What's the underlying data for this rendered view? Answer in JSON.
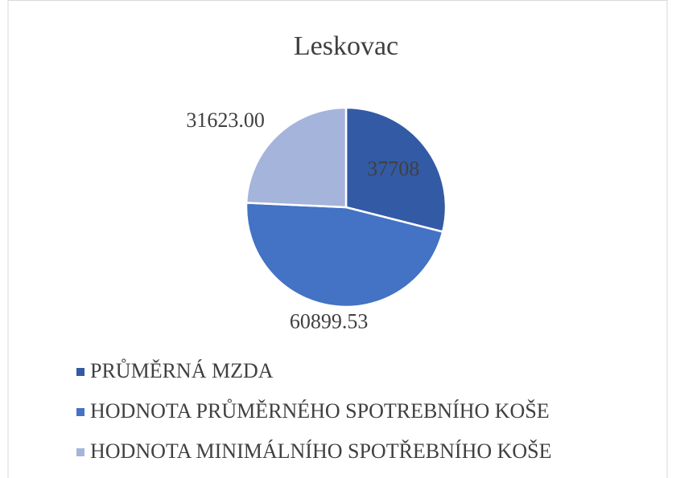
{
  "chart_data": {
    "type": "pie",
    "title": "Leskovac",
    "categories": [
      "PRŮMĚRNÁ MZDA",
      "HODNOTA PRŮMĚRNÉHO SPOTREBNÍHO KOŠE",
      "HODNOTA MINIMÁLNÍHO SPOTŘEBNÍHO KOŠE"
    ],
    "values": [
      37708,
      60899.53,
      31623
    ],
    "value_labels": [
      "37708",
      "60899.53",
      "31623.00"
    ],
    "colors": [
      "#335aa5",
      "#4472c4",
      "#a5b4da"
    ],
    "legend": "bottom"
  }
}
